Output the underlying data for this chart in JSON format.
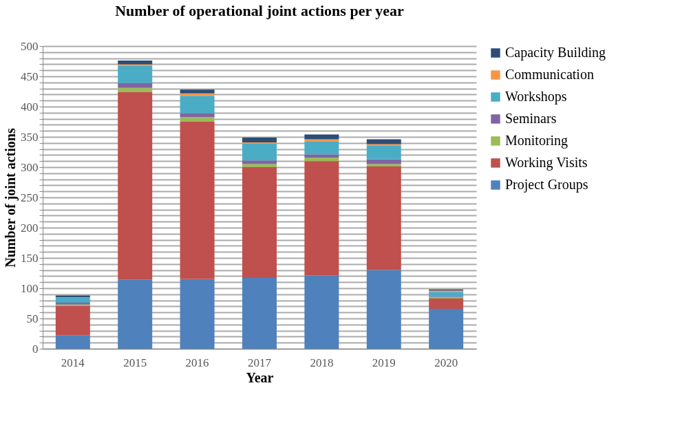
{
  "chart_data": {
    "type": "bar",
    "title": "Number of operational joint actions per year",
    "xlabel": "Year",
    "ylabel": "Number of joint actions",
    "categories": [
      "2014",
      "2015",
      "2016",
      "2017",
      "2018",
      "2019",
      "2020"
    ],
    "stacked": true,
    "series": [
      {
        "name": "Project Groups",
        "color": "#4f81bd",
        "values": [
          22,
          114,
          115,
          117,
          121,
          130,
          66
        ]
      },
      {
        "name": "Working Visits",
        "color": "#c0504d",
        "values": [
          49,
          310,
          260,
          183,
          189,
          171,
          17
        ]
      },
      {
        "name": "Monitoring",
        "color": "#9bbb59",
        "values": [
          2,
          7,
          8,
          5,
          6,
          4,
          2
        ]
      },
      {
        "name": "Seminars",
        "color": "#8064a2",
        "values": [
          3,
          8,
          6,
          6,
          5,
          8,
          1
        ]
      },
      {
        "name": "Workshops",
        "color": "#4bacc6",
        "values": [
          8,
          28,
          29,
          28,
          22,
          23,
          8
        ]
      },
      {
        "name": "Communication",
        "color": "#f79646",
        "values": [
          1,
          3,
          4,
          2,
          3,
          2,
          2
        ]
      },
      {
        "name": "Capacity Building",
        "color": "#2c4d75",
        "values": [
          3,
          6,
          6,
          8,
          8,
          8,
          2
        ]
      }
    ],
    "ylim": [
      0,
      500
    ],
    "yticks": [
      0,
      {
        "value": 10,
        "label": null
      },
      {
        "value": 20,
        "label": null
      },
      {
        "value": 30,
        "label": null
      },
      {
        "value": 40,
        "label": null
      },
      50,
      {
        "value": 60,
        "label": null
      },
      {
        "value": 70,
        "label": null
      },
      {
        "value": 80,
        "label": null
      },
      {
        "value": 90,
        "label": null
      },
      100,
      {
        "value": 110,
        "label": null
      },
      {
        "value": 120,
        "label": null
      },
      {
        "value": 130,
        "label": null
      },
      {
        "value": 140,
        "label": null
      },
      150,
      {
        "value": 160,
        "label": null
      },
      {
        "value": 170,
        "label": null
      },
      {
        "value": 180,
        "label": null
      },
      {
        "value": 190,
        "label": null
      },
      200,
      {
        "value": 210,
        "label": null
      },
      {
        "value": 220,
        "label": null
      },
      {
        "value": 230,
        "label": null
      },
      {
        "value": 240,
        "label": null
      },
      250,
      {
        "value": 260,
        "label": null
      },
      {
        "value": 270,
        "label": null
      },
      {
        "value": 280,
        "label": null
      },
      {
        "value": 290,
        "label": null
      },
      300,
      {
        "value": 310,
        "label": null
      },
      {
        "value": 320,
        "label": null
      },
      {
        "value": 330,
        "label": null
      },
      {
        "value": 340,
        "label": null
      },
      350,
      {
        "value": 360,
        "label": null
      },
      {
        "value": 370,
        "label": null
      },
      {
        "value": 380,
        "label": null
      },
      {
        "value": 390,
        "label": null
      },
      400,
      {
        "value": 410,
        "label": null
      },
      {
        "value": 420,
        "label": null
      },
      {
        "value": 430,
        "label": null
      },
      {
        "value": 440,
        "label": null
      },
      450,
      {
        "value": 460,
        "label": null
      },
      {
        "value": 470,
        "label": null
      },
      {
        "value": 480,
        "label": null
      },
      {
        "value": 490,
        "label": null
      },
      500
    ],
    "grid": "y",
    "legend": "right"
  }
}
